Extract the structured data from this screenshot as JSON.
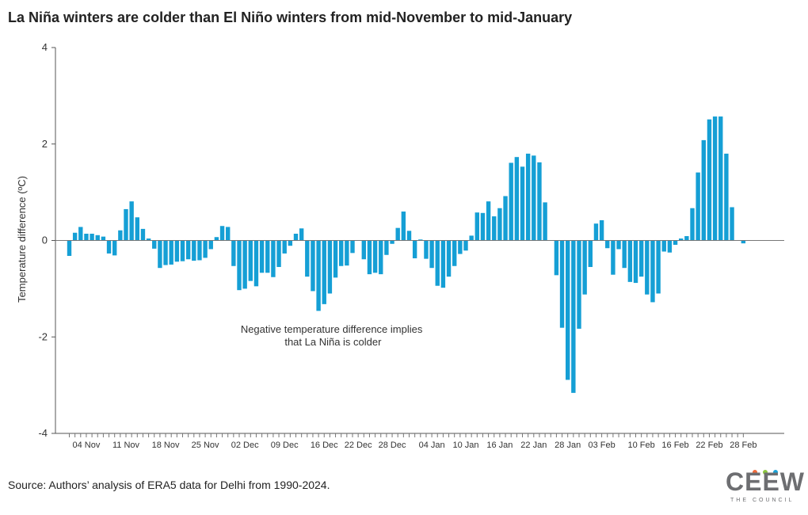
{
  "title": "La Niña winters are colder than El Niño winters from mid-November to mid-January",
  "source": "Source: Authors’ analysis of ERA5 data for Delhi from 1990-2024.",
  "logo": {
    "word": "CEEW",
    "subtitle": "THE COUNCIL",
    "dot_colors": [
      "#f26b3a",
      "#8cc63f",
      "#1aa3d9"
    ]
  },
  "chart_data": {
    "type": "bar",
    "ylabel": "Temperature difference (ºC)",
    "xlabel": "",
    "ylim": [
      -4,
      4
    ],
    "yticks": [
      -4,
      -2,
      0,
      2,
      4
    ],
    "grid": false,
    "bar_color": "#159fd5",
    "annotation": {
      "lines": [
        "Negative temperature difference implies",
        "that La Niña is colder"
      ],
      "x": "17 Dec",
      "y": -1.9
    },
    "x_tick_labels": [
      "04 Nov",
      "11 Nov",
      "18 Nov",
      "25 Nov",
      "02 Dec",
      "09 Dec",
      "16 Dec",
      "22 Dec",
      "28 Dec",
      "04 Jan",
      "10 Jan",
      "16 Jan",
      "22 Jan",
      "28 Jan",
      "03 Feb",
      "10 Feb",
      "16 Feb",
      "22 Feb",
      "28 Feb"
    ],
    "x_tick_label_category_index": [
      3,
      10,
      17,
      24,
      31,
      38,
      45,
      51,
      57,
      64,
      70,
      76,
      82,
      88,
      94,
      101,
      107,
      113,
      119
    ],
    "categories": [
      "01 Nov",
      "02 Nov",
      "03 Nov",
      "04 Nov",
      "05 Nov",
      "06 Nov",
      "07 Nov",
      "08 Nov",
      "09 Nov",
      "10 Nov",
      "11 Nov",
      "12 Nov",
      "13 Nov",
      "14 Nov",
      "15 Nov",
      "16 Nov",
      "17 Nov",
      "18 Nov",
      "19 Nov",
      "20 Nov",
      "21 Nov",
      "22 Nov",
      "23 Nov",
      "24 Nov",
      "25 Nov",
      "26 Nov",
      "27 Nov",
      "28 Nov",
      "29 Nov",
      "30 Nov",
      "01 Dec",
      "02 Dec",
      "03 Dec",
      "04 Dec",
      "05 Dec",
      "06 Dec",
      "07 Dec",
      "08 Dec",
      "09 Dec",
      "10 Dec",
      "11 Dec",
      "12 Dec",
      "13 Dec",
      "14 Dec",
      "15 Dec",
      "16 Dec",
      "17 Dec",
      "18 Dec",
      "19 Dec",
      "20 Dec",
      "21 Dec",
      "22 Dec",
      "23 Dec",
      "24 Dec",
      "25 Dec",
      "26 Dec",
      "27 Dec",
      "28 Dec",
      "29 Dec",
      "30 Dec",
      "31 Dec",
      "01 Jan",
      "02 Jan",
      "03 Jan",
      "04 Jan",
      "05 Jan",
      "06 Jan",
      "07 Jan",
      "08 Jan",
      "09 Jan",
      "10 Jan",
      "11 Jan",
      "12 Jan",
      "13 Jan",
      "14 Jan",
      "15 Jan",
      "16 Jan",
      "17 Jan",
      "18 Jan",
      "19 Jan",
      "20 Jan",
      "21 Jan",
      "22 Jan",
      "23 Jan",
      "24 Jan",
      "25 Jan",
      "26 Jan",
      "27 Jan",
      "28 Jan",
      "29 Jan",
      "30 Jan",
      "31 Jan",
      "01 Feb",
      "02 Feb",
      "03 Feb",
      "04 Feb",
      "05 Feb",
      "06 Feb",
      "07 Feb",
      "08 Feb",
      "09 Feb",
      "10 Feb",
      "11 Feb",
      "12 Feb",
      "13 Feb",
      "14 Feb",
      "15 Feb",
      "16 Feb",
      "17 Feb",
      "18 Feb",
      "19 Feb",
      "20 Feb",
      "21 Feb",
      "22 Feb",
      "23 Feb",
      "24 Feb",
      "25 Feb",
      "26 Feb",
      "27 Feb",
      "28 Feb"
    ],
    "values": [
      -0.32,
      0.16,
      0.28,
      0.14,
      0.14,
      0.11,
      0.08,
      -0.27,
      -0.31,
      0.21,
      0.65,
      0.81,
      0.48,
      0.24,
      0.04,
      -0.17,
      -0.57,
      -0.51,
      -0.5,
      -0.44,
      -0.43,
      -0.39,
      -0.42,
      -0.41,
      -0.36,
      -0.18,
      0.07,
      0.3,
      0.28,
      -0.53,
      -1.03,
      -1.0,
      -0.84,
      -0.95,
      -0.67,
      -0.67,
      -0.76,
      -0.55,
      -0.27,
      -0.11,
      0.14,
      0.25,
      -0.75,
      -1.05,
      -1.46,
      -1.32,
      -1.1,
      -0.77,
      -0.53,
      -0.52,
      -0.26,
      0.0,
      -0.39,
      -0.7,
      -0.67,
      -0.7,
      -0.3,
      -0.07,
      0.26,
      0.6,
      0.2,
      -0.37,
      0.02,
      -0.38,
      -0.57,
      -0.94,
      -0.98,
      -0.75,
      -0.53,
      -0.28,
      -0.21,
      0.1,
      0.58,
      0.57,
      0.81,
      0.5,
      0.67,
      0.92,
      1.61,
      1.73,
      1.53,
      1.8,
      1.76,
      1.62,
      0.79,
      0.0,
      -0.72,
      -1.81,
      -2.89,
      -3.16,
      -1.83,
      -1.12,
      -0.55,
      0.35,
      0.42,
      -0.16,
      -0.71,
      -0.18,
      -0.57,
      -0.86,
      -0.88,
      -0.75,
      -1.12,
      -1.28,
      -1.1,
      -0.23,
      -0.25,
      -0.09,
      0.04,
      0.09,
      0.67,
      1.41,
      2.08,
      2.51,
      2.57,
      2.57,
      1.8,
      0.69,
      0.0,
      -0.06
    ]
  }
}
